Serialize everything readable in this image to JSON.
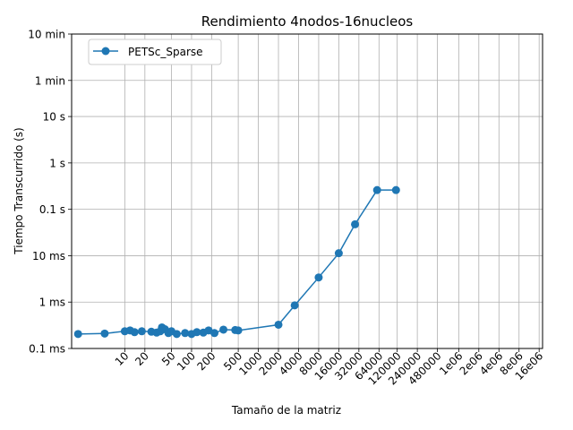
{
  "chart_data": {
    "type": "line",
    "title": "Rendimiento 4nodos-16nucleos",
    "xlabel": "Tamaño de la matriz",
    "ylabel": "Tiempo Transcurrido (s)",
    "xscale": "log",
    "yscale": "log",
    "grid": true,
    "legend_position": "upper-left",
    "colors": {
      "series": "#1f77b4",
      "grid": "#b0b0b0"
    },
    "xlim": [
      1.6,
      18000000
    ],
    "ylim": [
      0.0001,
      600
    ],
    "x_ticks": [
      {
        "value": 10,
        "label": "10"
      },
      {
        "value": 20,
        "label": "20"
      },
      {
        "value": 50,
        "label": "50"
      },
      {
        "value": 100,
        "label": "100"
      },
      {
        "value": 200,
        "label": "200"
      },
      {
        "value": 500,
        "label": "500"
      },
      {
        "value": 1000,
        "label": "1000"
      },
      {
        "value": 2000,
        "label": "2000"
      },
      {
        "value": 4000,
        "label": "4000"
      },
      {
        "value": 8000,
        "label": "8000"
      },
      {
        "value": 16000,
        "label": "16000"
      },
      {
        "value": 32000,
        "label": "32000"
      },
      {
        "value": 64000,
        "label": "64000"
      },
      {
        "value": 120000,
        "label": "120000"
      },
      {
        "value": 240000,
        "label": "240000"
      },
      {
        "value": 480000,
        "label": "480000"
      },
      {
        "value": 1000000,
        "label": "1e06"
      },
      {
        "value": 2000000,
        "label": "2e06"
      },
      {
        "value": 4000000,
        "label": "4e06"
      },
      {
        "value": 8000000,
        "label": "8e06"
      },
      {
        "value": 16000000,
        "label": "16e06"
      }
    ],
    "y_ticks": [
      {
        "value": 0.0001,
        "label": "0.1 ms"
      },
      {
        "value": 0.001,
        "label": "1 ms"
      },
      {
        "value": 0.01,
        "label": "10 ms"
      },
      {
        "value": 0.1,
        "label": "0.1 s"
      },
      {
        "value": 1,
        "label": "1 s"
      },
      {
        "value": 10,
        "label": "10 s"
      },
      {
        "value": 60,
        "label": "1 min"
      },
      {
        "value": 600,
        "label": "10 min"
      }
    ],
    "series": [
      {
        "name": "PETSc_Sparse",
        "x": [
          2,
          5,
          10,
          12,
          14,
          18,
          25,
          30,
          34,
          36,
          40,
          45,
          50,
          60,
          80,
          100,
          120,
          150,
          180,
          220,
          300,
          450,
          500,
          2000,
          3500,
          8000,
          16000,
          28000,
          60000,
          115000
        ],
        "y": [
          0.000205,
          0.00021,
          0.000235,
          0.000245,
          0.000225,
          0.000235,
          0.00023,
          0.00022,
          0.000235,
          0.000285,
          0.00026,
          0.000215,
          0.000235,
          0.000205,
          0.000215,
          0.000205,
          0.000225,
          0.00022,
          0.000245,
          0.000215,
          0.000255,
          0.00025,
          0.000245,
          0.000325,
          0.00085,
          0.0034,
          0.0113,
          0.0475,
          0.26,
          0.26
        ]
      }
    ]
  }
}
